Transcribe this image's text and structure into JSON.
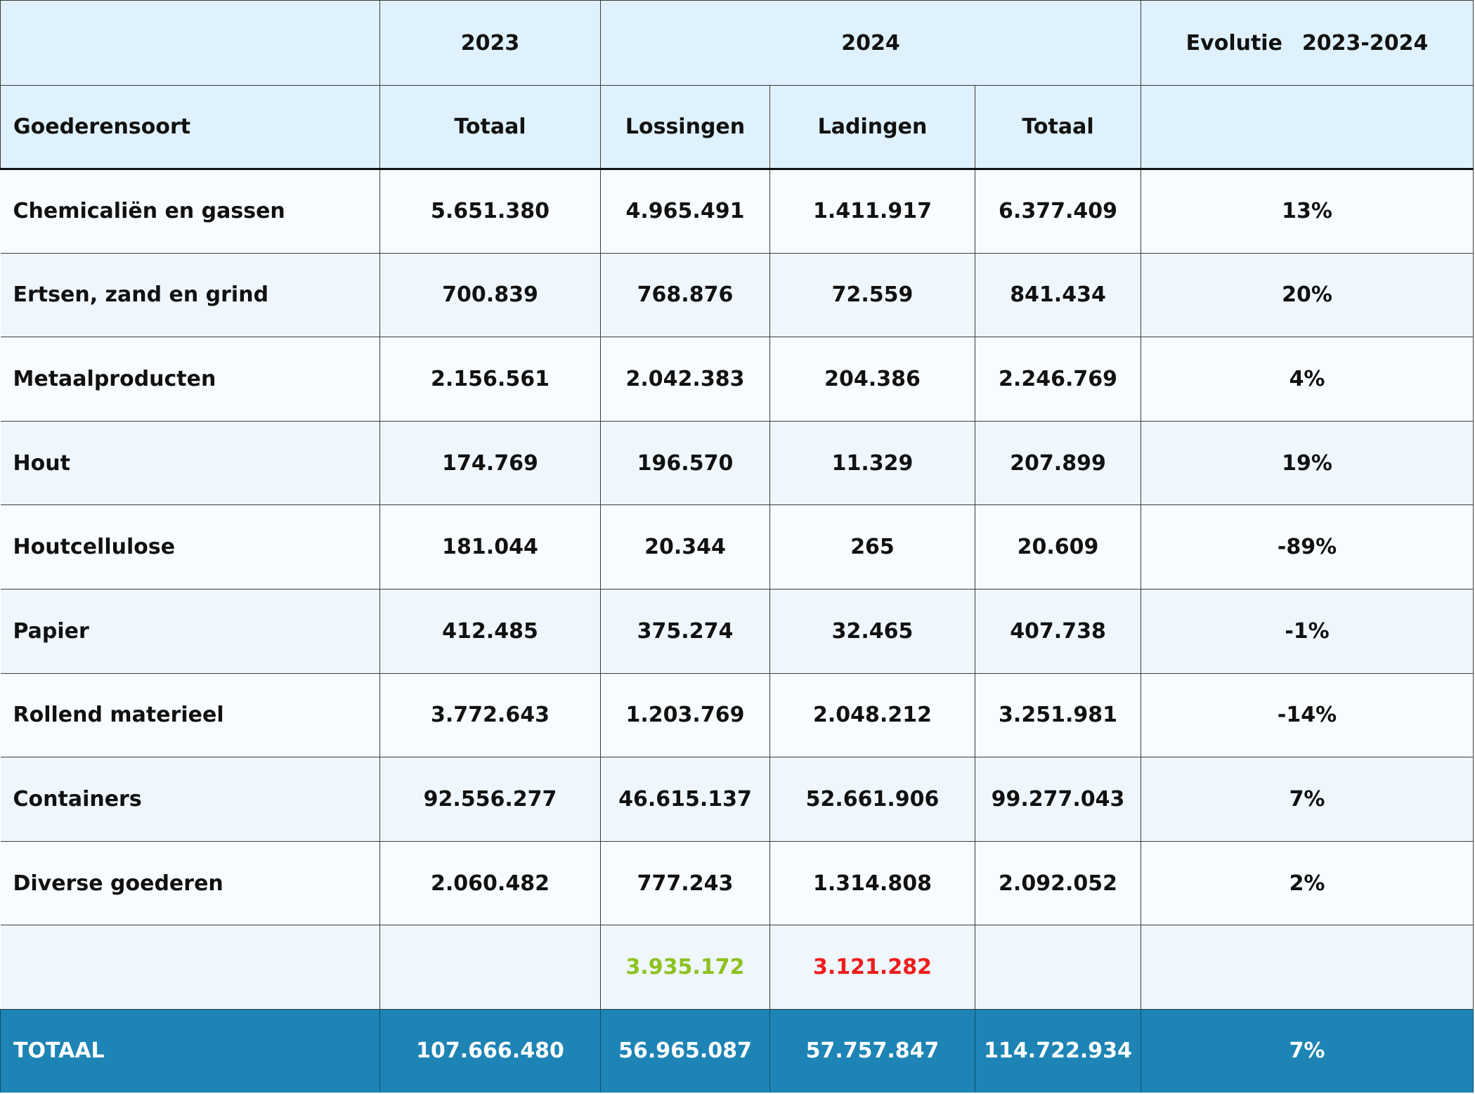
{
  "header": {
    "year_2023": "2023",
    "year_2024": "2024",
    "evolution_label": "Evolutie",
    "evolution_range": "2023-2024",
    "goods_type": "Goederensoort",
    "total_2023": "Totaal",
    "unloadings": "Lossingen",
    "loadings": "Ladingen",
    "total_2024": "Totaal"
  },
  "rows": [
    {
      "label": "Chemicaliën en gassen",
      "total_2023": "5.651.380",
      "unloadings": "4.965.491",
      "loadings": "1.411.917",
      "total_2024": "6.377.409",
      "evolution": "13%"
    },
    {
      "label": "Ertsen, zand en grind",
      "total_2023": "700.839",
      "unloadings": "768.876",
      "loadings": "72.559",
      "total_2024": "841.434",
      "evolution": "20%"
    },
    {
      "label": "Metaalproducten",
      "total_2023": "2.156.561",
      "unloadings": "2.042.383",
      "loadings": "204.386",
      "total_2024": "2.246.769",
      "evolution": "4%"
    },
    {
      "label": "Hout",
      "total_2023": "174.769",
      "unloadings": "196.570",
      "loadings": "11.329",
      "total_2024": "207.899",
      "evolution": "19%"
    },
    {
      "label": "Houtcellulose",
      "total_2023": "181.044",
      "unloadings": "20.344",
      "loadings": "265",
      "total_2024": "20.609",
      "evolution": "-89%"
    },
    {
      "label": "Papier",
      "total_2023": "412.485",
      "unloadings": "375.274",
      "loadings": "32.465",
      "total_2024": "407.738",
      "evolution": "-1%"
    },
    {
      "label": "Rollend materieel",
      "total_2023": "3.772.643",
      "unloadings": "1.203.769",
      "loadings": "2.048.212",
      "total_2024": "3.251.981",
      "evolution": "-14%"
    },
    {
      "label": "Containers",
      "total_2023": "92.556.277",
      "unloadings": "46.615.137",
      "loadings": "52.661.906",
      "total_2024": "99.277.043",
      "evolution": "7%"
    },
    {
      "label": "Diverse goederen",
      "total_2023": "2.060.482",
      "unloadings": "777.243",
      "loadings": "1.314.808",
      "total_2024": "2.092.052",
      "evolution": "2%"
    }
  ],
  "extra_row": {
    "unloadings": "3.935.172",
    "loadings": "3.121.282",
    "unloadings_color": "#8dc21f",
    "loadings_color": "#ee1c1c"
  },
  "total_row": {
    "label": "TOTAAL",
    "total_2023": "107.666.480",
    "unloadings": "56.965.087",
    "loadings": "57.757.847",
    "total_2024": "114.722.934",
    "evolution": "7%"
  },
  "colors": {
    "header_bg": "#dff1fc",
    "total_bg": "#1d84b5",
    "row_bg_light": "#f8fcff",
    "row_bg_alt": "#eff7fd"
  }
}
